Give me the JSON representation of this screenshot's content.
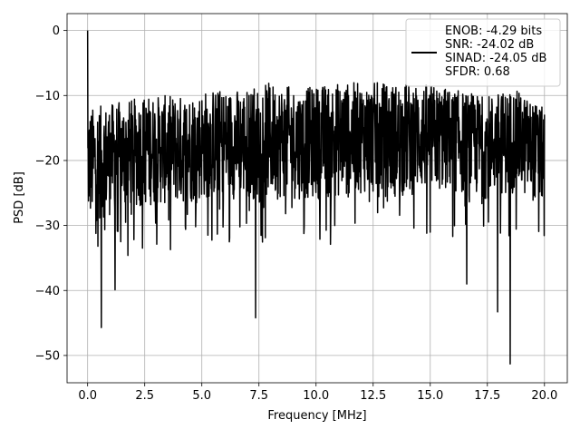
{
  "chart_data": {
    "type": "line",
    "title": "",
    "xlabel": "Frequency [MHz]",
    "ylabel": "PSD [dB]",
    "xlim": [
      -0.9,
      21.0
    ],
    "ylim": [
      -54.2,
      2.6
    ],
    "grid": true,
    "legend_placement": "top-right",
    "x_ticks": [
      0.0,
      2.5,
      5.0,
      7.5,
      10.0,
      12.5,
      15.0,
      17.5,
      20.0
    ],
    "x_tick_labels": [
      "0.0",
      "2.5",
      "5.0",
      "7.5",
      "10.0",
      "12.5",
      "15.0",
      "17.5",
      "20.0"
    ],
    "y_ticks": [
      0,
      -10,
      -20,
      -30,
      -40,
      -50
    ],
    "y_tick_labels": [
      "0",
      "−10",
      "−20",
      "−30",
      "−40",
      "−50"
    ],
    "series": [
      {
        "name": "ENOB: -4.29 bits\nSNR: -24.02 dB\nSINAD: -24.05 dB\nSFDR: 0.68",
        "color": "#000000",
        "x_range": [
          0.0,
          20.0
        ],
        "points_count": 1600,
        "upper_envelope_db": [
          -12,
          -11,
          -10,
          -10,
          -9,
          -9,
          -8,
          -9,
          -8,
          -8,
          -8,
          -8,
          -9,
          -10,
          -9,
          -12
        ],
        "lower_envelope_db": [
          -30,
          -28,
          -27,
          -27,
          -26,
          -26,
          -26,
          -26,
          -26,
          -25,
          -26,
          -25,
          -25,
          -26,
          -25,
          -27
        ],
        "notable_points": [
          {
            "x": 0.0,
            "y": 0.0
          },
          {
            "x": 0.6,
            "y": -45.7
          },
          {
            "x": 1.2,
            "y": -39.9
          },
          {
            "x": 7.35,
            "y": -44.2
          },
          {
            "x": 16.6,
            "y": -39.0
          },
          {
            "x": 17.95,
            "y": -43.3
          },
          {
            "x": 18.5,
            "y": -51.3
          }
        ]
      }
    ]
  }
}
